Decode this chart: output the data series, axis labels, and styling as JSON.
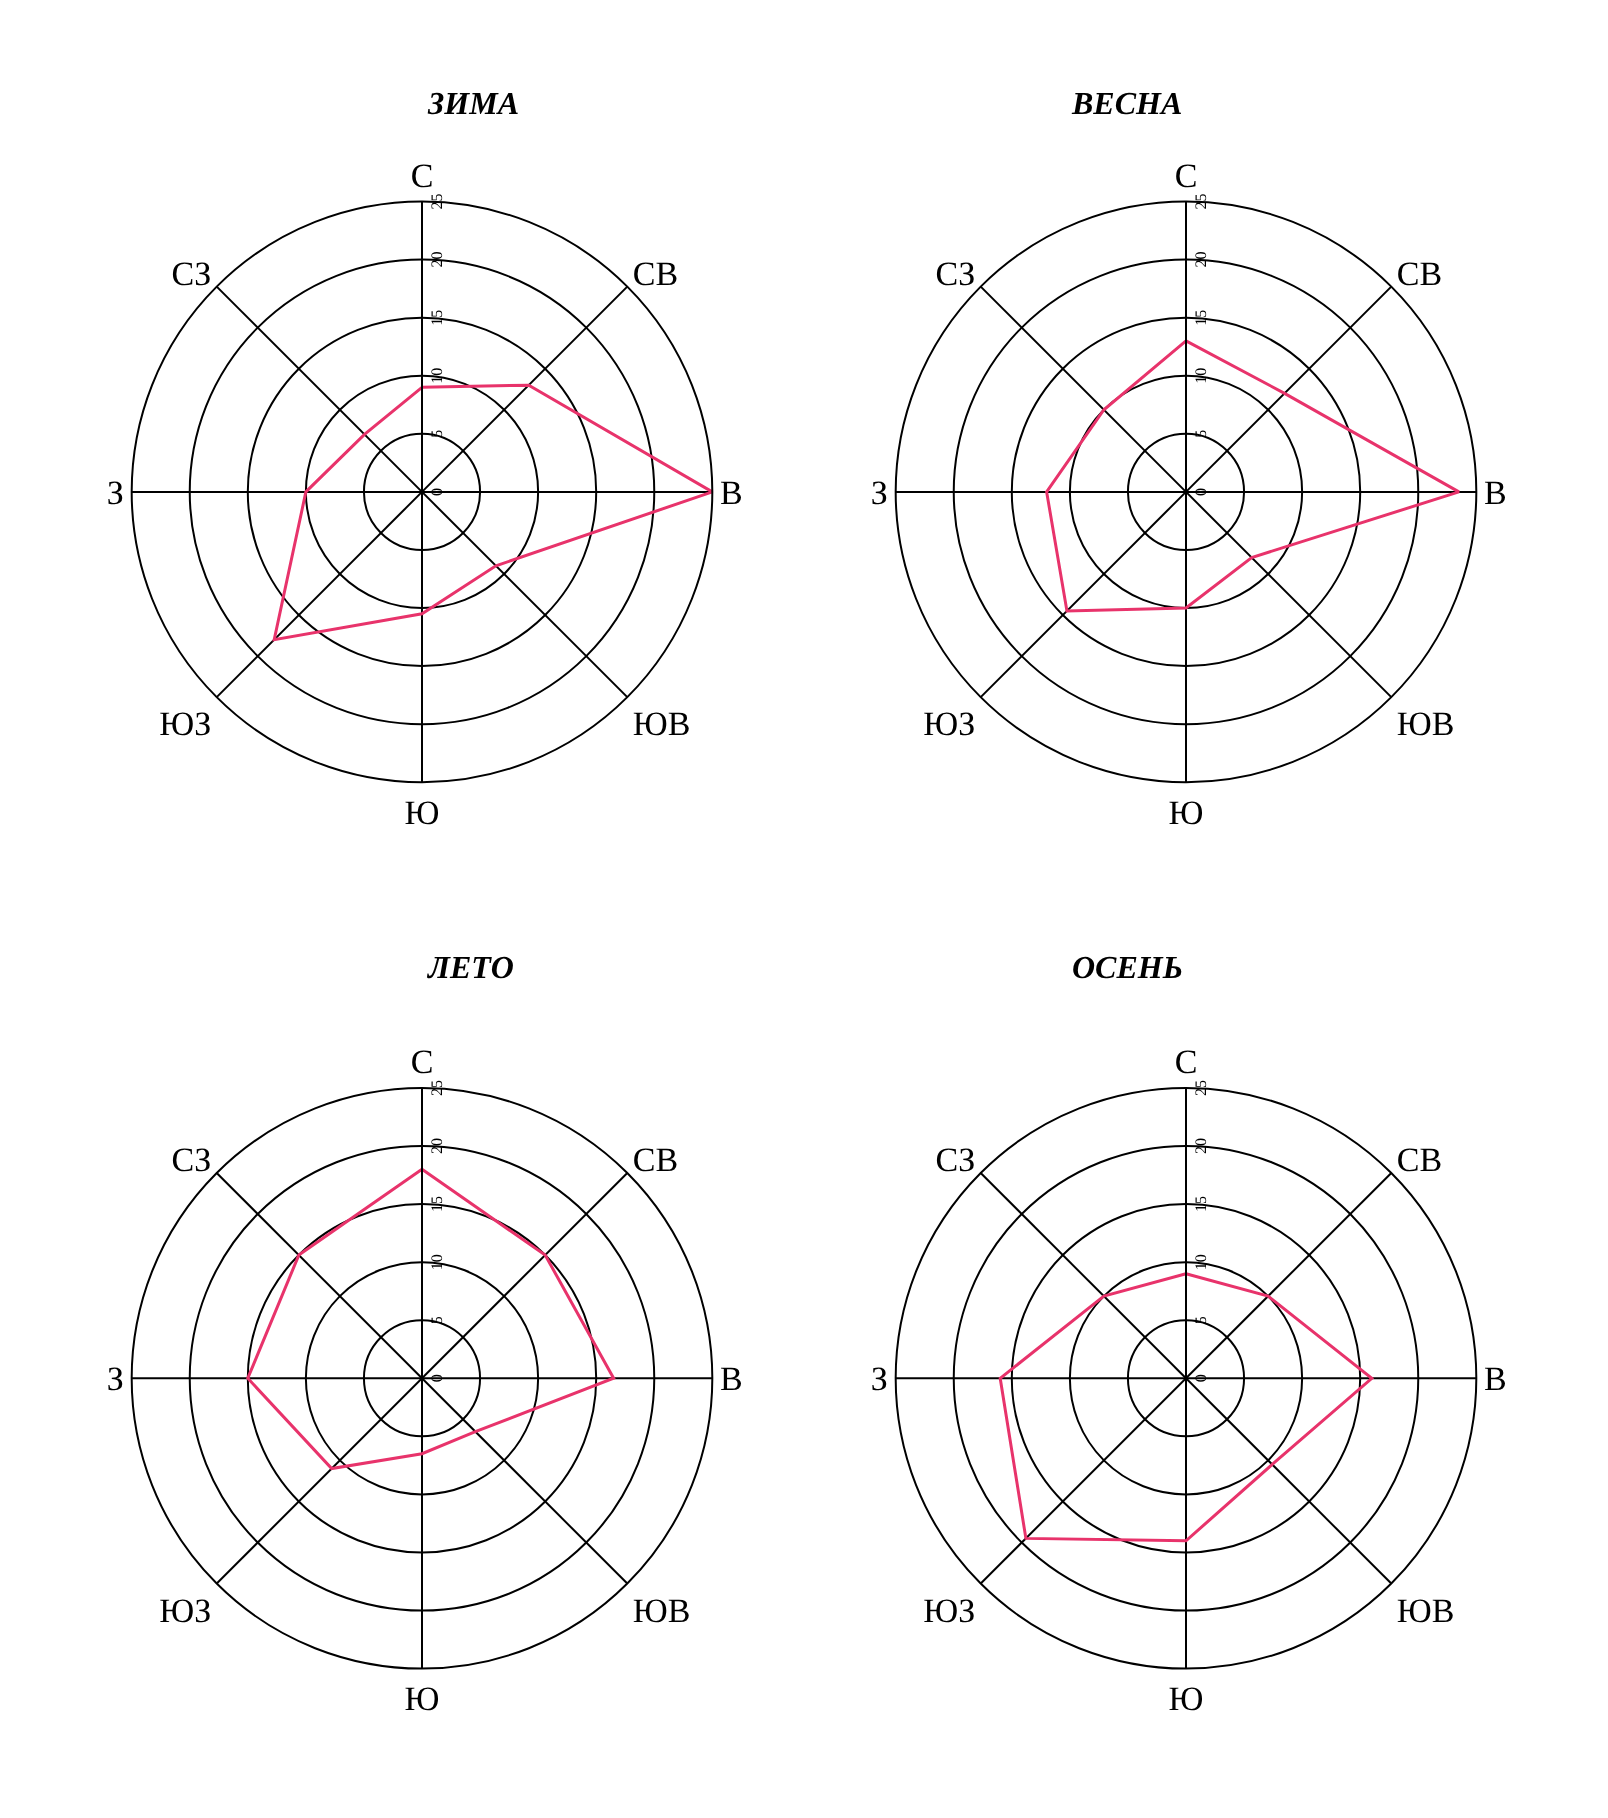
{
  "chart_data": [
    {
      "type": "radar",
      "title": "ЗИМА",
      "categories": [
        "С",
        "СВ",
        "В",
        "ЮВ",
        "Ю",
        "ЮЗ",
        "З",
        "СЗ"
      ],
      "ylim": [
        0,
        25
      ],
      "yticks": [
        0,
        5,
        10,
        15,
        20,
        25
      ],
      "grid": true,
      "series": [
        {
          "color": "#e8336b",
          "values": [
            9,
            13,
            25,
            9,
            10.5,
            18,
            10,
            7
          ]
        }
      ]
    },
    {
      "type": "radar",
      "title": "ВЕСНА",
      "categories": [
        "С",
        "СВ",
        "В",
        "ЮВ",
        "Ю",
        "ЮЗ",
        "З",
        "СЗ"
      ],
      "ylim": [
        0,
        25
      ],
      "yticks": [
        0,
        5,
        10,
        15,
        20,
        25
      ],
      "grid": true,
      "series": [
        {
          "color": "#e8336b",
          "values": [
            13,
            12,
            23.5,
            8,
            10,
            14.5,
            12,
            10
          ]
        }
      ]
    },
    {
      "type": "radar",
      "title": "ЛЕТО",
      "categories": [
        "С",
        "СВ",
        "В",
        "ЮВ",
        "Ю",
        "ЮЗ",
        "З",
        "СЗ"
      ],
      "ylim": [
        0,
        25
      ],
      "yticks": [
        0,
        5,
        10,
        15,
        20,
        25
      ],
      "grid": true,
      "series": [
        {
          "color": "#e8336b",
          "values": [
            18,
            15,
            16.5,
            6.5,
            6.5,
            11,
            15,
            15
          ]
        }
      ]
    },
    {
      "type": "radar",
      "title": "ОСЕНЬ",
      "categories": [
        "С",
        "СВ",
        "В",
        "ЮВ",
        "Ю",
        "ЮЗ",
        "З",
        "СЗ"
      ],
      "ylim": [
        0,
        25
      ],
      "yticks": [
        0,
        5,
        10,
        15,
        20,
        25
      ],
      "grid": true,
      "series": [
        {
          "color": "#e8336b",
          "values": [
            9,
            10,
            16,
            10.5,
            14,
            19.5,
            16,
            10
          ]
        }
      ]
    }
  ]
}
